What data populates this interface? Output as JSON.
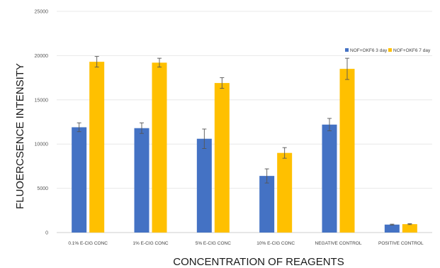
{
  "chart_data": {
    "type": "bar",
    "categories": [
      "0.1% E-CIG CONC",
      "1% E-CIG CONC",
      "5% E-CIG CONC",
      "10% E-CIG CONC",
      "NEGATIVE CONTROL",
      "POSITIVE CONTROL"
    ],
    "series": [
      {
        "name": "NOF+OKF6 3 day",
        "color": "#4472C4",
        "values": [
          11900,
          11800,
          10600,
          6400,
          12200,
          900
        ],
        "errors": [
          500,
          600,
          1100,
          800,
          700,
          50
        ]
      },
      {
        "name": "NOF+OKF6 7 day",
        "color": "#FFC000",
        "values": [
          19300,
          19200,
          16900,
          9000,
          18500,
          950
        ],
        "errors": [
          600,
          500,
          600,
          600,
          1200,
          50
        ]
      }
    ],
    "yticks": [
      "0",
      "5000",
      "10000",
      "15000",
      "20000",
      "25000"
    ],
    "ylim": [
      0,
      25000
    ],
    "xlabel": "CONCENTRATION OF REAGENTS",
    "ylabel": "FLUOERCSENCE INTENSITY",
    "grid": true,
    "legend_position": "top-right"
  }
}
